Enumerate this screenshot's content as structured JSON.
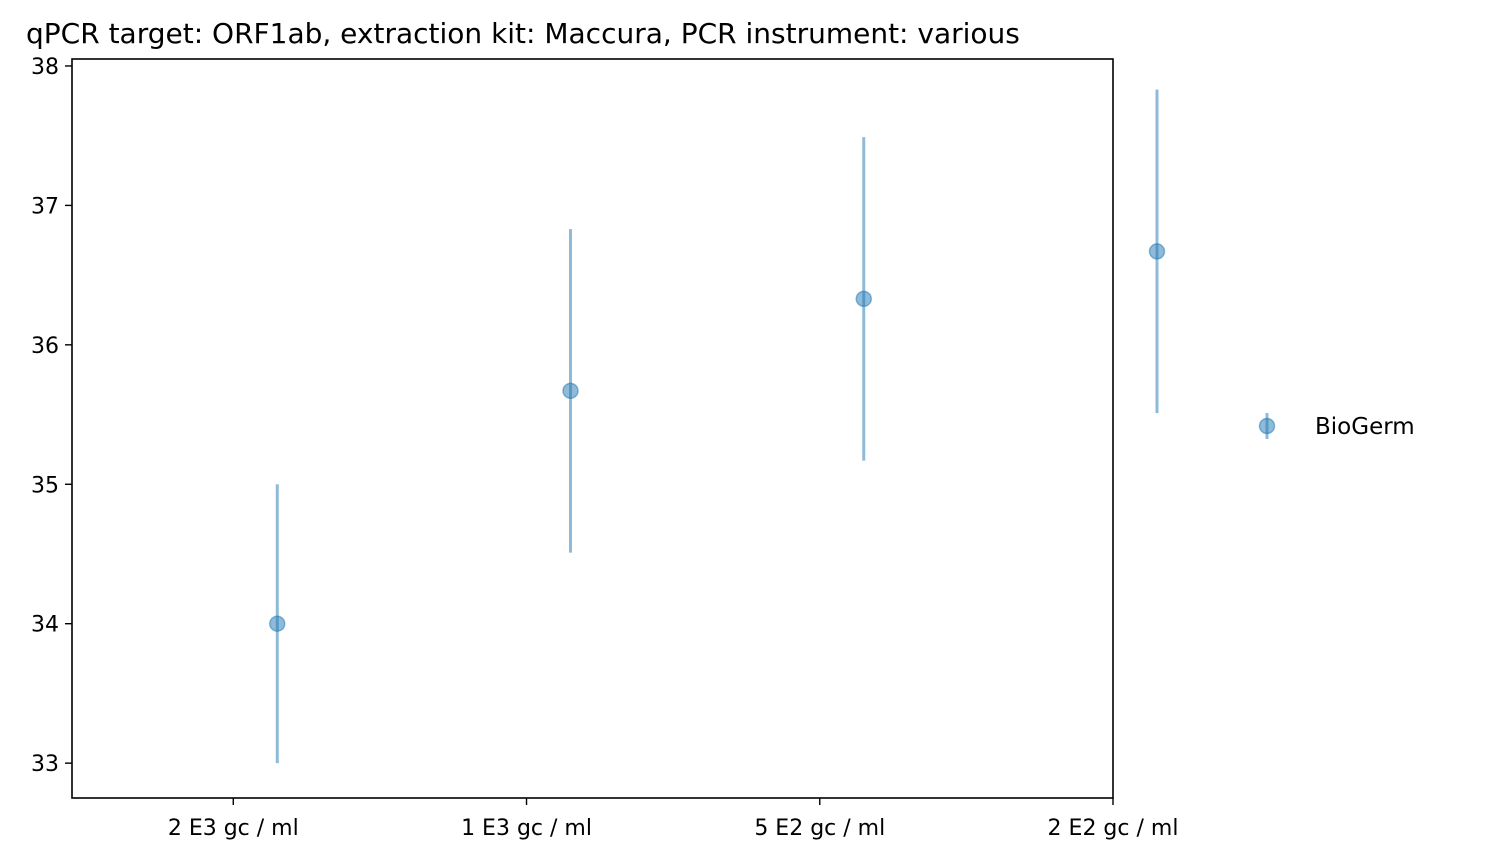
{
  "chart_data": {
    "type": "scatter",
    "title": "qPCR target: ORF1ab, extraction kit: Maccura, PCR instrument: various",
    "xlabel": "",
    "ylabel": "",
    "ylim": [
      32.75,
      38.05
    ],
    "yticks": [
      33,
      34,
      35,
      36,
      37,
      38
    ],
    "categories": [
      "2 E3 gc / ml",
      "1 E3 gc / ml",
      "5 E2 gc / ml",
      "2 E2 gc / ml"
    ],
    "grid": false,
    "legend": {
      "placement": "right-outside",
      "entries": [
        "BioGerm"
      ]
    },
    "series": [
      {
        "name": "BioGerm",
        "color": "#1f77b4",
        "points": [
          {
            "x": 0.15,
            "y": 34.0,
            "ymin": 33.0,
            "ymax": 35.0
          },
          {
            "x": 1.15,
            "y": 35.67,
            "ymin": 34.51,
            "ymax": 36.83
          },
          {
            "x": 2.15,
            "y": 36.33,
            "ymin": 35.17,
            "ymax": 37.49
          },
          {
            "x": 3.15,
            "y": 36.67,
            "ymin": 35.51,
            "ymax": 37.83
          }
        ]
      }
    ],
    "xlim": [
      -0.55,
      3.0
    ]
  }
}
